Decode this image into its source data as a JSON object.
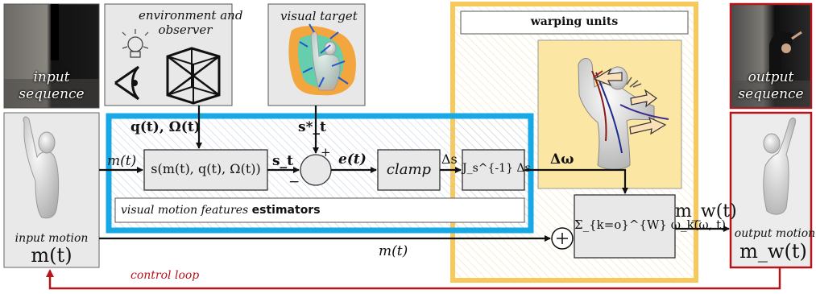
{
  "colors": {
    "estimator_border": "#17a9e6",
    "warping_border": "#f7c95a",
    "output_border": "#b3151b",
    "control_loop": "#b3151b",
    "visual_target_blob": "#f39a1e",
    "visual_target_inner": "#41d8c8"
  },
  "input": {
    "sequence_caption": [
      "input",
      "sequence"
    ],
    "motion_caption": "input motion",
    "motion_symbol": "m(t)"
  },
  "output": {
    "sequence_caption": [
      "output",
      "sequence"
    ],
    "motion_caption": "output motion",
    "motion_symbol": "m_w(t)"
  },
  "environment_box": {
    "title": [
      "environment and",
      "observer"
    ],
    "icons": [
      "light-bulb-icon",
      "eye-icon",
      "cube-icon"
    ]
  },
  "visual_target_box": {
    "title": "visual target"
  },
  "signals": {
    "q_omega": "q(t), Ω(t)",
    "m_t": "m(t)",
    "s_t": "s_t",
    "s_star": "s*_t",
    "e_t": "e(t)",
    "delta_s": "Δs",
    "delta_omega": "Δω",
    "m_t_bottom": "m(t)",
    "m_w_t": "m_w(t)",
    "plus": "+",
    "minus": "−",
    "sum_plus": "+"
  },
  "blocks": {
    "estimator_function": "s(m(t), q(t), Ω(t))",
    "clamp": "clamp",
    "jacobian": "J_s^{-1} Δs",
    "sum_formula": "Σ_{k=o}^{W} ω_k(ω, t)"
  },
  "estimators_label": {
    "prefix": "visual motion features ",
    "bold": "estimators"
  },
  "warping_units": {
    "title": "warping units"
  },
  "control_loop": {
    "label": "control loop"
  }
}
